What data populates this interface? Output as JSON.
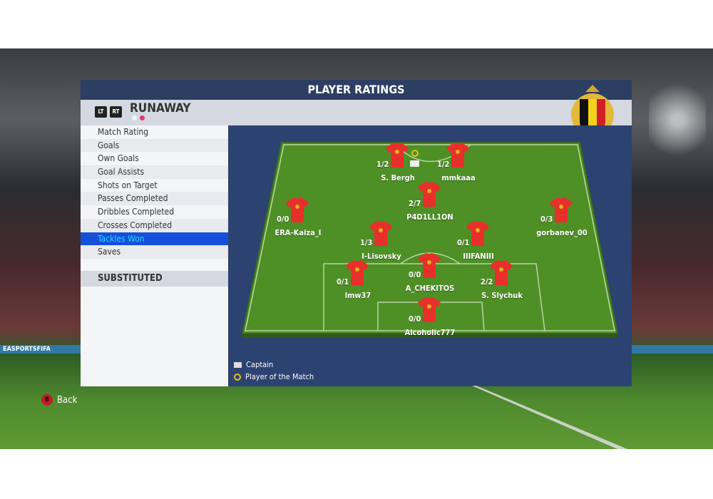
{
  "header": {
    "title": "PLAYER RATINGS"
  },
  "team": {
    "name": "RUNAWAY",
    "lt_label": "LT",
    "rt_label": "RT",
    "dot_colors": [
      "#ffffff",
      "#e8336f"
    ]
  },
  "crest": {
    "text": "URBSFA KBVB"
  },
  "stats": {
    "items": [
      "Match Rating",
      "Goals",
      "Own Goals",
      "Goal Assists",
      "Shots on Target",
      "Passes Completed",
      "Dribbles Completed",
      "Crosses Completed",
      "Tackles Won",
      "Saves"
    ],
    "selected": "Tackles Won",
    "substituted_label": "SUBSTITUTED"
  },
  "players": [
    {
      "name": "S. Bergh",
      "value": "1/2",
      "captain": true,
      "potm": true
    },
    {
      "name": "mmkaaa",
      "value": "1/2"
    },
    {
      "name": "P4D1LL1ON",
      "value": "2/7"
    },
    {
      "name": "ERA-Kaiza_I",
      "value": "0/0"
    },
    {
      "name": "gorbanev_00",
      "value": "0/3"
    },
    {
      "name": "I-Lisovsky",
      "value": "1/3"
    },
    {
      "name": "IIIFANIII",
      "value": "0/1"
    },
    {
      "name": "lmw37",
      "value": "0/1"
    },
    {
      "name": "A_CHEKITOS",
      "value": "0/0"
    },
    {
      "name": "S. Slychuk",
      "value": "2/2"
    },
    {
      "name": "Alcoholic777",
      "value": "0/0"
    }
  ],
  "legend": {
    "captain": "Captain",
    "potm": "Player of the Match"
  },
  "footer": {
    "back_key": "B",
    "back_label": "Back"
  },
  "background": {
    "adboard": "EASPORTSFIFA"
  },
  "colors": {
    "header": "#2d3e63",
    "selected": "#1450d8",
    "selected_text": "#2ad4ff",
    "jersey": "#e8302a",
    "pitch": "#5a9a2c"
  }
}
